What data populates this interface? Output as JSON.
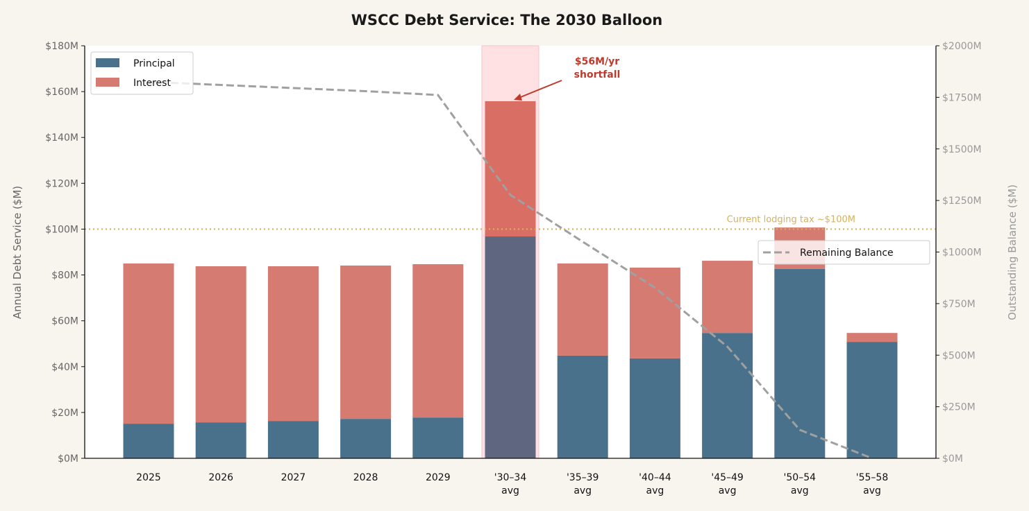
{
  "chart_data": {
    "type": "bar",
    "stacked": true,
    "title": "WSCC Debt Service: The 2030 Balloon",
    "categories": [
      "2025",
      "2026",
      "2027",
      "2028",
      "2029",
      "'30–34\navg",
      "'35–39\navg",
      "'40–44\navg",
      "'45–49\navg",
      "'50–54\navg",
      "'55–58\navg"
    ],
    "ylabel": "Annual Debt Service ($M)",
    "ylim": [
      0,
      180
    ],
    "yticks": [
      "$0M",
      "$20M",
      "$40M",
      "$60M",
      "$80M",
      "$100M",
      "$120M",
      "$140M",
      "$160M",
      "$180M"
    ],
    "y2label": "Outstanding Balance ($M)",
    "y2lim": [
      0,
      2000
    ],
    "y2ticks": [
      "$0M",
      "$250M",
      "$500M",
      "$750M",
      "$1000M",
      "$1250M",
      "$1500M",
      "$1750M",
      "$2000M"
    ],
    "series": [
      {
        "name": "Principal",
        "color": "#4a718b",
        "values": [
          15.1,
          15.7,
          16.3,
          17.2,
          17.8,
          96.8,
          44.8,
          43.6,
          54.7,
          82.6,
          50.8
        ]
      },
      {
        "name": "Interest",
        "color": "#d57b72",
        "values": [
          69.9,
          68.1,
          67.5,
          66.9,
          66.9,
          59.0,
          40.2,
          39.6,
          31.5,
          18.1,
          3.9
        ]
      }
    ],
    "line_series": {
      "name": "Remaining Balance",
      "color": "#a0a0a0",
      "axis": "right",
      "style": "dashed",
      "values": [
        1825,
        1810,
        1795,
        1780,
        1761,
        1277,
        1050,
        827,
        541,
        138,
        0
      ]
    },
    "highlight": {
      "category_index": 5,
      "color": "#ffe0e3",
      "bar_colors": [
        "#5e6680",
        "#d96e64"
      ]
    },
    "reference_line": {
      "value": 100,
      "label": "Current lodging tax ~$100M",
      "color": "#d4b25a",
      "style": "dotted"
    },
    "annotation": {
      "lines": [
        "$56M/yr",
        "shortfall"
      ],
      "color": "#c0392b",
      "target_index": 5
    },
    "legends": [
      {
        "placement": "upper-left",
        "entries": [
          "Principal",
          "Interest"
        ]
      },
      {
        "placement": "center-right",
        "entries": [
          "Remaining Balance"
        ]
      }
    ],
    "grid": false
  }
}
